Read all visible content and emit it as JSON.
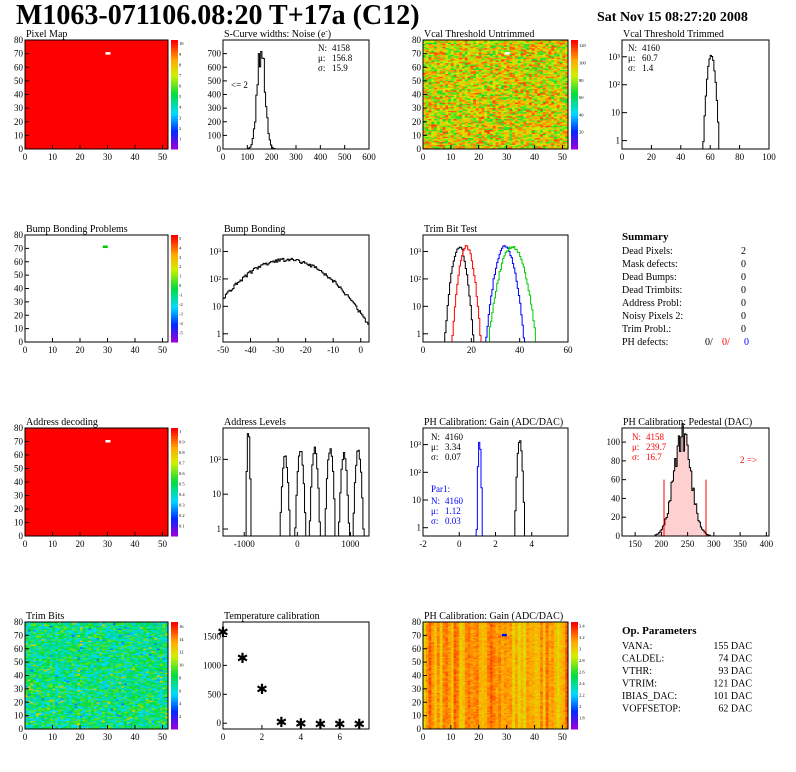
{
  "header": {
    "title": "M1063-071106.08:20 T+17a (C12)",
    "datetime": "Sat Nov 15 08:27:20 2008"
  },
  "colors": {
    "red": "#ff0000",
    "blue": "#0000ff",
    "green": "#00cc00",
    "black": "#000000"
  },
  "chart_data": [
    {
      "id": "pixel-map",
      "type": "heatmap",
      "title": "Pixel Map",
      "xticks": [
        "0",
        "10",
        "20",
        "30",
        "40",
        "50"
      ],
      "yticks": [
        "0",
        "10",
        "20",
        "30",
        "40",
        "50",
        "60",
        "70",
        "80"
      ],
      "zticks": [
        "1",
        "2",
        "3",
        "4",
        "5",
        "6",
        "7",
        "8",
        "9",
        "10"
      ],
      "xlim": [
        0,
        52
      ],
      "ylim": [
        0,
        80
      ],
      "fill": "uniform-red",
      "spots": [
        {
          "x": 30,
          "y": 70,
          "color": "#ffffff"
        }
      ]
    },
    {
      "id": "noise",
      "type": "histogram",
      "title": "S-Curve widths: Noise (e",
      "title_sup": "-",
      "title_close": ")",
      "xticks": [
        "0",
        "100",
        "200",
        "300",
        "400",
        "500",
        "600"
      ],
      "yticks": [
        "0",
        "100",
        "200",
        "300",
        "400",
        "500",
        "600",
        "700"
      ],
      "xlim": [
        0,
        600
      ],
      "ylim": [
        0,
        800
      ],
      "peaks": [
        {
          "mean": 157,
          "sigma": 16,
          "height": 730
        }
      ],
      "stats": [
        {
          "label": "N:",
          "value": "4158"
        },
        {
          "label": "μ:",
          "value": "156.8"
        },
        {
          "label": "σ:",
          "value": "15.9"
        }
      ],
      "annotation": "<= 2"
    },
    {
      "id": "vcal-untrimmed",
      "type": "heatmap",
      "title": "Vcal Threshold Untrimmed",
      "xticks": [
        "0",
        "10",
        "20",
        "30",
        "40",
        "50"
      ],
      "yticks": [
        "0",
        "10",
        "20",
        "30",
        "40",
        "50",
        "60",
        "70",
        "80"
      ],
      "zticks": [
        "20",
        "40",
        "60",
        "80",
        "100",
        "120"
      ],
      "xlim": [
        0,
        52
      ],
      "ylim": [
        0,
        80
      ],
      "fill": "noisy-orange",
      "spots": [
        {
          "x": 30,
          "y": 70,
          "color": "#ffffff"
        }
      ]
    },
    {
      "id": "vcal-trimmed",
      "type": "histogram",
      "title": "Vcal Threshold Trimmed",
      "log": true,
      "xticks": [
        "0",
        "20",
        "40",
        "60",
        "80",
        "100"
      ],
      "yticks": [
        "1",
        "10",
        "10²",
        "10³"
      ],
      "xlim": [
        0,
        100
      ],
      "ylim_decades": [
        -0.3,
        3.6
      ],
      "peaks": [
        {
          "mean": 60.7,
          "sigma": 1.4,
          "height": 1200
        }
      ],
      "stats": [
        {
          "label": "N:",
          "value": "4160"
        },
        {
          "label": "μ:",
          "value": "60.7"
        },
        {
          "label": "σ:",
          "value": "1.4"
        }
      ]
    },
    {
      "id": "bump-problems",
      "type": "heatmap",
      "title": "Bump Bonding Problems",
      "xticks": [
        "0",
        "10",
        "20",
        "30",
        "40",
        "50"
      ],
      "yticks": [
        "0",
        "10",
        "20",
        "30",
        "40",
        "50",
        "60",
        "70",
        "80"
      ],
      "zticks": [
        "-5",
        "-4",
        "-3",
        "-2",
        "-1",
        "0",
        "1",
        "2",
        "3",
        "4",
        "5"
      ],
      "xlim": [
        0,
        52
      ],
      "ylim": [
        0,
        80
      ],
      "fill": "empty",
      "spots": [
        {
          "x": 29,
          "y": 71,
          "color": "#00cc00"
        }
      ]
    },
    {
      "id": "bump-bonding",
      "type": "histogram",
      "title": "Bump Bonding",
      "log": true,
      "xticks": [
        "-50",
        "-40",
        "-30",
        "-20",
        "-10",
        "0"
      ],
      "yticks": [
        "1",
        "10",
        "10²",
        "10³"
      ],
      "xlim": [
        -50,
        3
      ],
      "ylim_decades": [
        -0.3,
        3.6
      ],
      "peaks": [
        {
          "mean": -27,
          "sigma": 9,
          "height": 500
        }
      ]
    },
    {
      "id": "trim-bit-test",
      "type": "histogram",
      "title": "Trim Bit Test",
      "log": true,
      "xticks": [
        "0",
        "20",
        "40",
        "60"
      ],
      "yticks": [
        "1",
        "10",
        "10²",
        "10³"
      ],
      "xlim": [
        0,
        60
      ],
      "ylim_decades": [
        -0.3,
        3.6
      ],
      "series": [
        {
          "color": "#000000",
          "mean": 15,
          "sigma": 1.5
        },
        {
          "color": "#ff0000",
          "mean": 18,
          "sigma": 1.5
        },
        {
          "color": "#0000ff",
          "mean": 34,
          "sigma": 2.0
        },
        {
          "color": "#00cc00",
          "mean": 37,
          "sigma": 2.5
        }
      ]
    },
    {
      "id": "address-decoding",
      "type": "heatmap",
      "title": "Address decoding",
      "xticks": [
        "0",
        "10",
        "20",
        "30",
        "40",
        "50"
      ],
      "yticks": [
        "0",
        "10",
        "20",
        "30",
        "40",
        "50",
        "60",
        "70",
        "80"
      ],
      "zticks": [
        "0.1",
        "0.2",
        "0.3",
        "0.4",
        "0.5",
        "0.6",
        "0.7",
        "0.8",
        "0.9",
        "1"
      ],
      "xlim": [
        0,
        52
      ],
      "ylim": [
        0,
        80
      ],
      "fill": "uniform-red",
      "spots": [
        {
          "x": 30,
          "y": 70,
          "color": "#ffffff"
        }
      ]
    },
    {
      "id": "address-levels",
      "type": "histogram",
      "title": "Address Levels",
      "log": true,
      "xticks": [
        "-1000",
        "0",
        "1000"
      ],
      "yticks": [
        "1",
        "10",
        "10²"
      ],
      "xlim": [
        -1400,
        1350
      ],
      "ylim_decades": [
        -0.2,
        2.9
      ],
      "peaks": [
        {
          "mean": -920,
          "sigma": 10,
          "height": 800
        },
        {
          "mean": -230,
          "sigma": 30,
          "height": 120
        },
        {
          "mean": 60,
          "sigma": 30,
          "height": 180
        },
        {
          "mean": 330,
          "sigma": 30,
          "height": 200
        },
        {
          "mean": 620,
          "sigma": 30,
          "height": 200
        },
        {
          "mean": 880,
          "sigma": 30,
          "height": 150
        },
        {
          "mean": 1150,
          "sigma": 30,
          "height": 180
        }
      ]
    },
    {
      "id": "ph-gain-hist",
      "type": "histogram",
      "title": "PH Calibration: Gain (ADC/DAC)",
      "log": true,
      "xticks": [
        "-2",
        "0",
        "2",
        "4"
      ],
      "yticks": [
        "1",
        "10",
        "10²",
        "10³"
      ],
      "xlim": [
        -2,
        6
      ],
      "ylim_decades": [
        -0.3,
        3.6
      ],
      "series": [
        {
          "color": "#000000",
          "mean": 3.34,
          "sigma": 0.07
        },
        {
          "color": "#0000ff",
          "mean": 1.12,
          "sigma": 0.03
        }
      ],
      "stats": [
        {
          "label": "N:",
          "value": "4160"
        },
        {
          "label": "μ:",
          "value": "3.34"
        },
        {
          "label": "σ:",
          "value": "0.07"
        }
      ],
      "stats2_title": "Par1:",
      "stats2": [
        {
          "label": "N:",
          "value": "4160"
        },
        {
          "label": "μ:",
          "value": "1.12"
        },
        {
          "label": "σ:",
          "value": "0.03"
        }
      ]
    },
    {
      "id": "ph-pedestal",
      "type": "histogram",
      "title": "PH Calibration: Pedestal (DAC)",
      "xticks": [
        "150",
        "200",
        "250",
        "300",
        "350",
        "400"
      ],
      "yticks": [
        "0",
        "20",
        "40",
        "60",
        "80",
        "100"
      ],
      "xlim": [
        125,
        405
      ],
      "ylim": [
        0,
        115
      ],
      "peaks": [
        {
          "mean": 239.7,
          "sigma": 16.7,
          "height": 105
        }
      ],
      "cutlines": [
        205,
        285
      ],
      "stats": [
        {
          "label": "N:",
          "value": "4158"
        },
        {
          "label": "μ:",
          "value": "239.7"
        },
        {
          "label": "σ:",
          "value": "16.7"
        }
      ],
      "annotation": "2 =>"
    },
    {
      "id": "trim-bits",
      "type": "heatmap",
      "title": "Trim Bits",
      "xticks": [
        "0",
        "10",
        "20",
        "30",
        "40",
        "50"
      ],
      "yticks": [
        "0",
        "10",
        "20",
        "30",
        "40",
        "50",
        "60",
        "70",
        "80"
      ],
      "zticks": [
        "2",
        "4",
        "6",
        "8",
        "10",
        "12",
        "14",
        "16"
      ],
      "xlim": [
        0,
        52
      ],
      "ylim": [
        0,
        80
      ],
      "fill": "noisy-green",
      "spots": []
    },
    {
      "id": "temperature",
      "type": "scatter",
      "title": "Temperature calibration",
      "xticks": [
        "0",
        "2",
        "4",
        "6"
      ],
      "yticks": [
        "0",
        "500",
        "1000",
        "1500"
      ],
      "xlim": [
        0,
        7.5
      ],
      "ylim": [
        -100,
        1750
      ],
      "x": [
        0,
        1,
        2,
        3,
        4,
        5,
        6,
        7
      ],
      "y": [
        1580,
        1130,
        590,
        20,
        -5,
        -10,
        -10,
        -10
      ]
    },
    {
      "id": "ph-gain-map",
      "type": "heatmap",
      "title": "PH Calibration: Gain (ADC/DAC)",
      "xticks": [
        "0",
        "10",
        "20",
        "30",
        "40",
        "50"
      ],
      "yticks": [
        "0",
        "10",
        "20",
        "30",
        "40",
        "50",
        "60",
        "70",
        "80"
      ],
      "zticks": [
        "1.8",
        "2",
        "2.2",
        "2.4",
        "2.6",
        "2.8",
        "3",
        "3.2",
        "3.4"
      ],
      "xlim": [
        0,
        52
      ],
      "ylim": [
        0,
        80
      ],
      "fill": "striped-red",
      "spots": [
        {
          "x": 29,
          "y": 70,
          "color": "#0000ff"
        }
      ]
    }
  ],
  "summary": {
    "title": "Summary",
    "rows": [
      {
        "label": "Dead Pixels:",
        "value": "2"
      },
      {
        "label": "Mask defects:",
        "value": "0"
      },
      {
        "label": "Dead Bumps:",
        "value": "0"
      },
      {
        "label": "Dead Trimbits:",
        "value": "0"
      },
      {
        "label": "Address Probl:",
        "value": "0"
      },
      {
        "label": "Noisy Pixels 2:",
        "value": "0"
      },
      {
        "label": "Trim Probl.:",
        "value": "0"
      }
    ],
    "ph_label": "PH defects:",
    "ph_values": [
      {
        "value": "0/",
        "color": "#000000"
      },
      {
        "value": "0/",
        "color": "#ff0000"
      },
      {
        "value": "0",
        "color": "#0000ff"
      }
    ]
  },
  "op_params": {
    "title": "Op. Parameters",
    "rows": [
      {
        "label": "VANA:",
        "value": "155 DAC"
      },
      {
        "label": "CALDEL:",
        "value": "74 DAC"
      },
      {
        "label": "VTHR:",
        "value": "93 DAC"
      },
      {
        "label": "VTRIM:",
        "value": "121 DAC"
      },
      {
        "label": "IBIAS_DAC:",
        "value": "101 DAC"
      },
      {
        "label": "VOFFSETOP:",
        "value": "62 DAC"
      }
    ]
  }
}
